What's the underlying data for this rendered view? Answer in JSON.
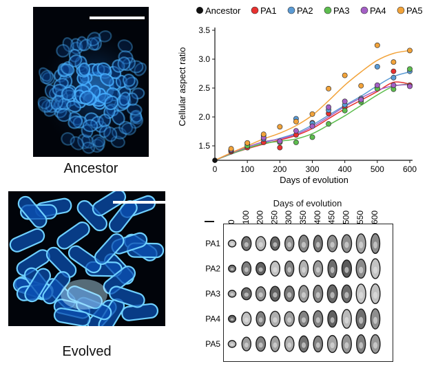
{
  "panels": {
    "ancestor_caption": "Ancestor",
    "evolved_caption": "Evolved"
  },
  "chart_data": {
    "type": "scatter",
    "xlabel": "Days of evolution",
    "ylabel": "Cellular aspect ratio",
    "xlim": [
      0,
      600
    ],
    "ylim": [
      1.25,
      3.5
    ],
    "xticks": [
      0,
      100,
      200,
      300,
      400,
      500,
      600
    ],
    "yticks": [
      1.5,
      2.0,
      2.5,
      3.0,
      3.5
    ],
    "legend_position": "top",
    "ancestor": {
      "name": "Ancestor",
      "color": "#111111",
      "x": 0,
      "y": 1.25
    },
    "series": [
      {
        "name": "PA1",
        "color": "#e8312f",
        "x": [
          50,
          100,
          150,
          200,
          250,
          300,
          350,
          400,
          450,
          500,
          550,
          600
        ],
        "y": [
          1.4,
          1.47,
          1.56,
          1.47,
          1.69,
          1.9,
          2.06,
          2.17,
          2.29,
          2.5,
          2.79,
          2.55
        ],
        "fit": [
          1.36,
          1.45,
          1.53,
          1.6,
          1.68,
          1.8,
          1.97,
          2.14,
          2.29,
          2.44,
          2.6,
          2.57
        ]
      },
      {
        "name": "PA2",
        "color": "#5b9bd5",
        "x": [
          50,
          100,
          150,
          200,
          250,
          300,
          350,
          400,
          450,
          500,
          550,
          600
        ],
        "y": [
          1.42,
          1.52,
          1.62,
          1.57,
          1.97,
          1.89,
          2.12,
          2.21,
          2.32,
          2.87,
          2.68,
          2.79
        ],
        "fit": [
          1.36,
          1.46,
          1.55,
          1.63,
          1.72,
          1.86,
          2.03,
          2.2,
          2.36,
          2.54,
          2.7,
          2.78
        ]
      },
      {
        "name": "PA3",
        "color": "#5dbd4e",
        "x": [
          50,
          100,
          150,
          200,
          250,
          300,
          350,
          400,
          450,
          500,
          550,
          600
        ],
        "y": [
          1.42,
          1.5,
          1.68,
          1.56,
          1.56,
          1.65,
          1.88,
          2.11,
          2.26,
          2.49,
          2.48,
          2.83
        ],
        "fit": [
          1.36,
          1.46,
          1.54,
          1.58,
          1.62,
          1.71,
          1.86,
          2.02,
          2.2,
          2.38,
          2.53,
          2.57
        ]
      },
      {
        "name": "PA4",
        "color": "#a45fc5",
        "x": [
          50,
          100,
          150,
          200,
          250,
          300,
          350,
          400,
          450,
          500,
          550,
          600
        ],
        "y": [
          1.43,
          1.55,
          1.64,
          1.58,
          1.76,
          1.84,
          2.17,
          2.27,
          2.3,
          2.55,
          2.55,
          2.53
        ],
        "fit": [
          1.37,
          1.48,
          1.57,
          1.62,
          1.7,
          1.83,
          2.0,
          2.18,
          2.33,
          2.46,
          2.54,
          2.56
        ]
      },
      {
        "name": "PA5",
        "color": "#f2a33a",
        "x": [
          50,
          100,
          150,
          200,
          250,
          300,
          350,
          400,
          450,
          500,
          550,
          600
        ],
        "y": [
          1.45,
          1.55,
          1.7,
          1.83,
          1.92,
          2.05,
          2.49,
          2.72,
          2.54,
          3.24,
          2.95,
          3.15
        ],
        "fit": [
          1.38,
          1.5,
          1.62,
          1.72,
          1.85,
          2.03,
          2.28,
          2.55,
          2.78,
          2.98,
          3.1,
          3.15
        ]
      }
    ]
  },
  "gallery": {
    "header": "Days of evolution",
    "days": [
      "0",
      "100",
      "200",
      "250",
      "300",
      "350",
      "400",
      "450",
      "500",
      "550",
      "600"
    ],
    "rows": [
      "PA1",
      "PA2",
      "PA3",
      "PA4",
      "PA5"
    ]
  }
}
